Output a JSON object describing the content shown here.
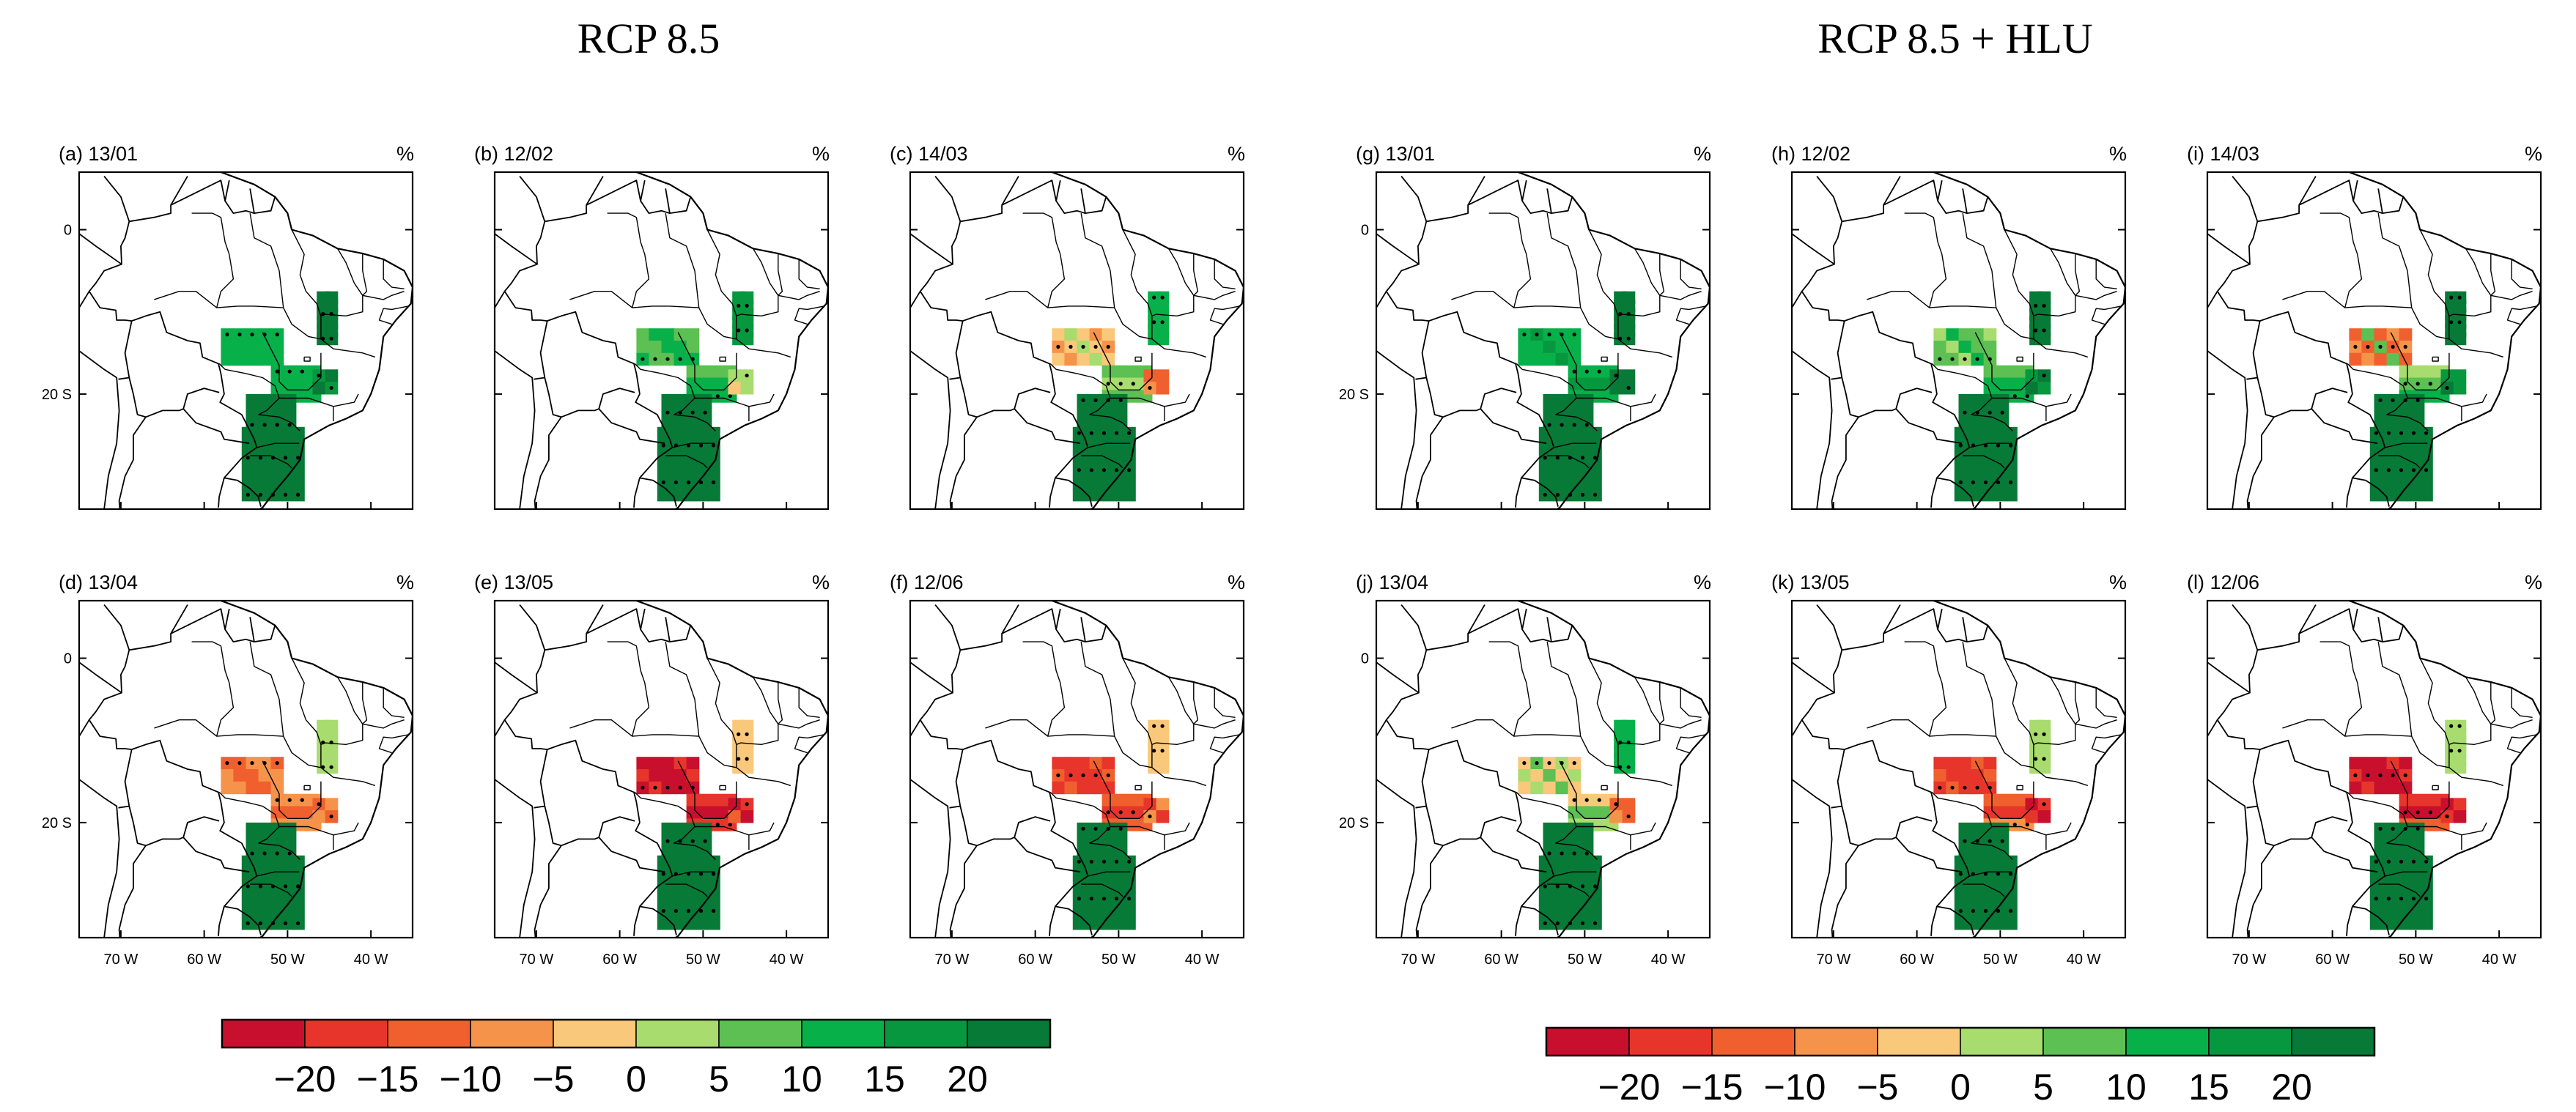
{
  "groups": [
    {
      "title": "RCP 8.5"
    },
    {
      "title": "RCP 8.5 + HLU"
    }
  ],
  "colorbar": {
    "labels": [
      "−20",
      "−15",
      "−10",
      "−5",
      "0",
      "5",
      "10",
      "15",
      "20"
    ],
    "colors": [
      "#c8102e",
      "#e8352b",
      "#f0602e",
      "#f6934a",
      "#fac87a",
      "#a8dc6e",
      "#5cc052",
      "#08b04a",
      "#07983f",
      "#067a36"
    ]
  },
  "chart_data": {
    "type": "heatmap",
    "variable_unit": "%",
    "value_bins": [
      -20,
      -15,
      -10,
      -5,
      0,
      5,
      10,
      15,
      20
    ],
    "x_ticks": [
      "70 W",
      "60 W",
      "50 W",
      "40 W"
    ],
    "y_ticks": [
      "0",
      "20 S"
    ],
    "lon_range": [
      -75,
      -35
    ],
    "lat_range": [
      -34,
      7
    ],
    "panels": [
      {
        "id": "a",
        "title": "(a) 13/01",
        "unit": "%",
        "group": "RCP 8.5",
        "pattern": [
          7,
          7,
          7,
          7,
          7,
          7,
          7,
          8,
          9,
          9,
          9,
          9,
          9,
          9,
          9,
          9,
          9,
          9
        ]
      },
      {
        "id": "b",
        "title": "(b) 12/02",
        "unit": "%",
        "group": "RCP 8.5",
        "pattern": [
          6,
          6,
          7,
          7,
          6,
          7,
          7,
          5,
          4,
          5,
          8,
          9,
          9,
          9,
          9,
          9,
          9,
          9
        ]
      },
      {
        "id": "c",
        "title": "(c) 14/03",
        "unit": "%",
        "group": "RCP 8.5",
        "pattern": [
          4,
          3,
          4,
          5,
          6,
          5,
          6,
          2,
          3,
          2,
          7,
          9,
          9,
          9,
          9,
          9,
          9,
          9
        ]
      },
      {
        "id": "d",
        "title": "(d) 13/04",
        "unit": "%",
        "group": "RCP 8.5",
        "pattern": [
          2,
          3,
          3,
          2,
          3,
          2,
          3,
          2,
          3,
          3,
          5,
          9,
          9,
          9,
          9,
          9,
          9,
          9
        ]
      },
      {
        "id": "e",
        "title": "(e) 13/05",
        "unit": "%",
        "group": "RCP 8.5",
        "pattern": [
          0,
          1,
          0,
          0,
          1,
          0,
          1,
          0,
          2,
          1,
          4,
          9,
          9,
          9,
          9,
          9,
          9,
          9
        ]
      },
      {
        "id": "f",
        "title": "(f) 12/06",
        "unit": "%",
        "group": "RCP 8.5",
        "pattern": [
          1,
          2,
          1,
          1,
          2,
          1,
          2,
          1,
          3,
          3,
          4,
          9,
          9,
          9,
          9,
          9,
          9,
          9
        ]
      },
      {
        "id": "g",
        "title": "(g) 13/01",
        "unit": "%",
        "group": "RCP 8.5 + HLU",
        "pattern": [
          7,
          7,
          7,
          8,
          7,
          8,
          7,
          9,
          9,
          9,
          9,
          9,
          9,
          9,
          9,
          9,
          9,
          9
        ]
      },
      {
        "id": "h",
        "title": "(h) 12/02",
        "unit": "%",
        "group": "RCP 8.5 + HLU",
        "pattern": [
          5,
          6,
          6,
          7,
          6,
          7,
          7,
          8,
          9,
          9,
          9,
          9,
          9,
          9,
          9,
          9,
          9,
          9
        ]
      },
      {
        "id": "i",
        "title": "(i) 14/03",
        "unit": "%",
        "group": "RCP 8.5 + HLU",
        "pattern": [
          2,
          3,
          2,
          6,
          5,
          6,
          7,
          8,
          9,
          8,
          9,
          9,
          9,
          9,
          9,
          9,
          9,
          9
        ]
      },
      {
        "id": "j",
        "title": "(j) 13/04",
        "unit": "%",
        "group": "RCP 8.5 + HLU",
        "pattern": [
          4,
          5,
          4,
          6,
          4,
          6,
          5,
          2,
          3,
          2,
          7,
          9,
          9,
          9,
          9,
          9,
          9,
          9
        ]
      },
      {
        "id": "k",
        "title": "(k) 13/05",
        "unit": "%",
        "group": "RCP 8.5 + HLU",
        "pattern": [
          1,
          2,
          1,
          1,
          2,
          1,
          3,
          0,
          1,
          1,
          5,
          9,
          9,
          9,
          9,
          9,
          9,
          9
        ]
      },
      {
        "id": "l",
        "title": "(l) 12/06",
        "unit": "%",
        "group": "RCP 8.5 + HLU",
        "pattern": [
          0,
          1,
          0,
          0,
          1,
          0,
          2,
          0,
          1,
          1,
          5,
          9,
          9,
          9,
          9,
          9,
          9,
          9
        ]
      }
    ]
  }
}
